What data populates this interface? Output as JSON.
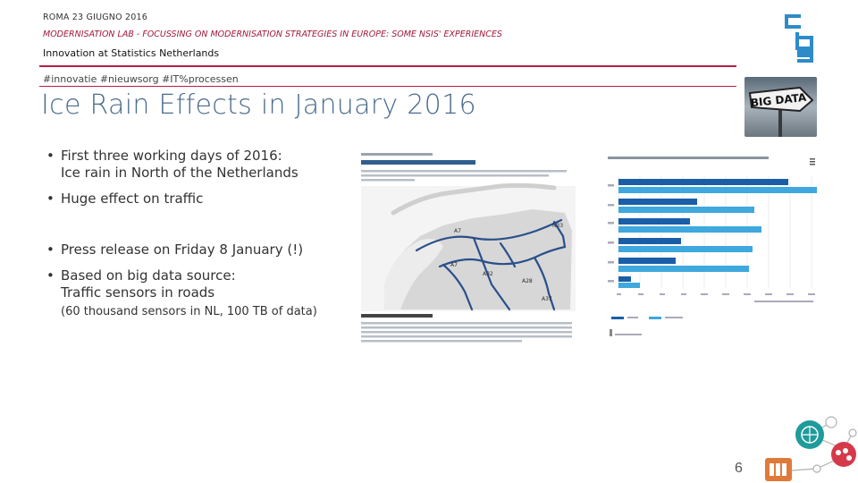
{
  "header": {
    "city_date": "ROMA 23 GIUGNO 2016",
    "lab": "MODERNISATION LAB - FOCUSSING ON MODERNISATION STRATEGIES IN EUROPE: SOME NSIS' EXPERIENCES",
    "subtitle": "Innovation at Statistics Netherlands",
    "tags": "#innovatie #nieuwsorg #IT%processen"
  },
  "title": "Ice Rain Effects in January 2016",
  "bullets": [
    {
      "lines": [
        "First three working days of 2016:",
        "Ice rain in North of the Netherlands"
      ]
    },
    {
      "lines": [
        "Huge effect on traffic"
      ]
    },
    {
      "lines": [
        "Press release on Friday 8 January (!)"
      ]
    },
    {
      "lines": [
        "Based on big data source:",
        "Traffic sensors in roads"
      ],
      "note": "(60 thousand sensors in NL, 100 TB of data)"
    }
  ],
  "map_figure": {
    "road_labels": [
      "A7",
      "A28",
      "A7",
      "A32",
      "A28",
      "N33",
      "A37"
    ]
  },
  "bigdata_sign": "BIG DATA",
  "page_number": "6",
  "colors": {
    "accent": "#b51f45",
    "title": "#4b6c8c",
    "cbs_blue": "#2e8bc9",
    "bar_dark": "#1a5ea8",
    "bar_light": "#3fa8de"
  }
}
